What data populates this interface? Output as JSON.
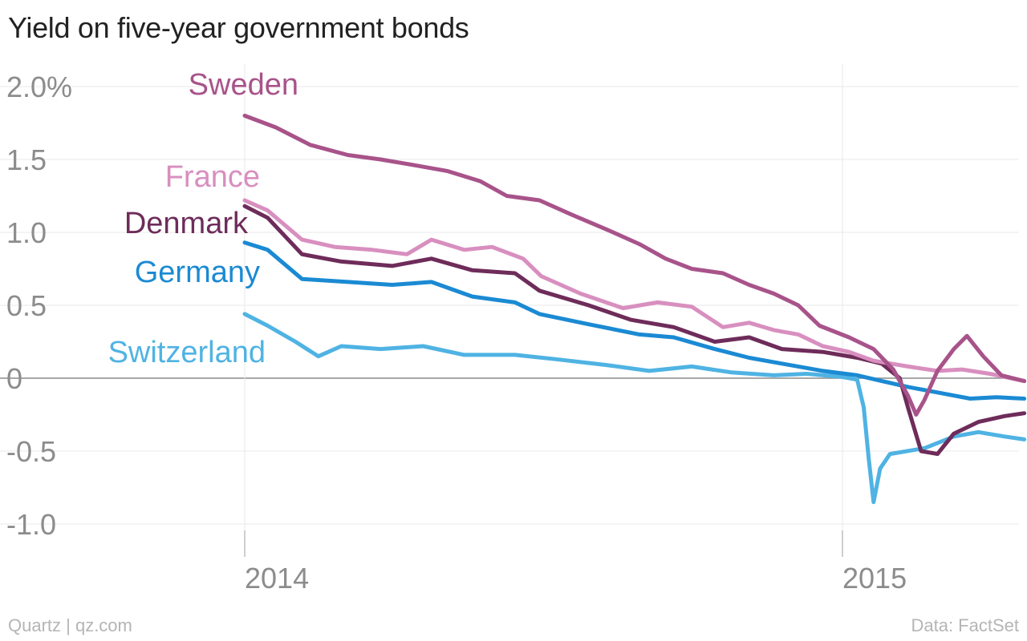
{
  "title": "Yield on five-year government bonds",
  "footer": {
    "source": "Quartz | qz.com",
    "data": "Data: FactSet"
  },
  "colors": {
    "Sweden": "#a8538a",
    "France": "#d88fbf",
    "Denmark": "#6e2c5a",
    "Germany": "#1b8ad3",
    "Switzerland": "#4fb3e3"
  },
  "chart_data": {
    "type": "line",
    "title": "Yield on five-year government bonds",
    "xlabel": "",
    "ylabel": "",
    "xlim": [
      "2013-10-01",
      "2015-04-30"
    ],
    "ylim": [
      -1.2,
      2.15
    ],
    "yticks": [
      2.0,
      1.5,
      1.0,
      0.5,
      0,
      -0.5,
      -1.0
    ],
    "ytick_labels": [
      "2.0%",
      "1.5",
      "1.0",
      "0.5",
      "0",
      "-0.5",
      "-1.0"
    ],
    "xticks": [
      "2014-01-01",
      "2015-01-01"
    ],
    "xtick_labels": [
      "2014",
      "2015"
    ],
    "grid": true,
    "legend": "direct labels at line starts",
    "series": [
      {
        "name": "Sweden",
        "points": [
          [
            "2014-01-01",
            1.8
          ],
          [
            "2014-01-20",
            1.72
          ],
          [
            "2014-02-10",
            1.6
          ],
          [
            "2014-03-05",
            1.53
          ],
          [
            "2014-03-25",
            1.5
          ],
          [
            "2014-04-15",
            1.46
          ],
          [
            "2014-05-05",
            1.42
          ],
          [
            "2014-05-25",
            1.35
          ],
          [
            "2014-06-10",
            1.25
          ],
          [
            "2014-06-30",
            1.22
          ],
          [
            "2014-07-20",
            1.12
          ],
          [
            "2014-08-10",
            1.02
          ],
          [
            "2014-08-30",
            0.92
          ],
          [
            "2014-09-15",
            0.82
          ],
          [
            "2014-10-01",
            0.75
          ],
          [
            "2014-10-20",
            0.72
          ],
          [
            "2014-11-05",
            0.64
          ],
          [
            "2014-11-20",
            0.58
          ],
          [
            "2014-12-05",
            0.5
          ],
          [
            "2014-12-18",
            0.36
          ],
          [
            "2015-01-05",
            0.28
          ],
          [
            "2015-01-20",
            0.2
          ],
          [
            "2015-02-01",
            0.06
          ],
          [
            "2015-02-10",
            -0.12
          ],
          [
            "2015-02-15",
            -0.25
          ],
          [
            "2015-02-20",
            -0.15
          ],
          [
            "2015-02-28",
            0.05
          ],
          [
            "2015-03-10",
            0.2
          ],
          [
            "2015-03-18",
            0.29
          ],
          [
            "2015-03-28",
            0.15
          ],
          [
            "2015-04-08",
            0.02
          ],
          [
            "2015-04-22",
            -0.02
          ]
        ]
      },
      {
        "name": "France",
        "points": [
          [
            "2014-01-01",
            1.22
          ],
          [
            "2014-01-15",
            1.15
          ],
          [
            "2014-02-05",
            0.95
          ],
          [
            "2014-02-25",
            0.9
          ],
          [
            "2014-03-20",
            0.88
          ],
          [
            "2014-04-10",
            0.85
          ],
          [
            "2014-04-25",
            0.95
          ],
          [
            "2014-05-15",
            0.88
          ],
          [
            "2014-06-01",
            0.9
          ],
          [
            "2014-06-20",
            0.82
          ],
          [
            "2014-07-01",
            0.7
          ],
          [
            "2014-07-25",
            0.58
          ],
          [
            "2014-08-20",
            0.48
          ],
          [
            "2014-09-10",
            0.52
          ],
          [
            "2014-10-01",
            0.49
          ],
          [
            "2014-10-20",
            0.35
          ],
          [
            "2014-11-05",
            0.38
          ],
          [
            "2014-11-20",
            0.33
          ],
          [
            "2014-12-05",
            0.3
          ],
          [
            "2014-12-20",
            0.22
          ],
          [
            "2015-01-05",
            0.18
          ],
          [
            "2015-01-20",
            0.12
          ],
          [
            "2015-02-10",
            0.08
          ],
          [
            "2015-02-28",
            0.05
          ],
          [
            "2015-03-15",
            0.06
          ],
          [
            "2015-04-01",
            0.03
          ],
          [
            "2015-04-22",
            -0.02
          ]
        ]
      },
      {
        "name": "Denmark",
        "points": [
          [
            "2014-01-01",
            1.18
          ],
          [
            "2014-01-15",
            1.1
          ],
          [
            "2014-02-05",
            0.85
          ],
          [
            "2014-03-01",
            0.8
          ],
          [
            "2014-04-01",
            0.77
          ],
          [
            "2014-04-25",
            0.82
          ],
          [
            "2014-05-20",
            0.74
          ],
          [
            "2014-06-15",
            0.72
          ],
          [
            "2014-06-30",
            0.6
          ],
          [
            "2014-07-30",
            0.5
          ],
          [
            "2014-08-25",
            0.4
          ],
          [
            "2014-09-20",
            0.35
          ],
          [
            "2014-10-15",
            0.25
          ],
          [
            "2014-11-05",
            0.28
          ],
          [
            "2014-11-25",
            0.2
          ],
          [
            "2014-12-20",
            0.18
          ],
          [
            "2015-01-10",
            0.14
          ],
          [
            "2015-01-25",
            0.1
          ],
          [
            "2015-02-05",
            0.0
          ],
          [
            "2015-02-10",
            -0.2
          ],
          [
            "2015-02-18",
            -0.5
          ],
          [
            "2015-02-28",
            -0.52
          ],
          [
            "2015-03-10",
            -0.38
          ],
          [
            "2015-03-25",
            -0.3
          ],
          [
            "2015-04-10",
            -0.26
          ],
          [
            "2015-04-22",
            -0.24
          ]
        ]
      },
      {
        "name": "Germany",
        "points": [
          [
            "2014-01-01",
            0.93
          ],
          [
            "2014-01-15",
            0.88
          ],
          [
            "2014-02-05",
            0.68
          ],
          [
            "2014-03-05",
            0.66
          ],
          [
            "2014-04-01",
            0.64
          ],
          [
            "2014-04-25",
            0.66
          ],
          [
            "2014-05-20",
            0.56
          ],
          [
            "2014-06-15",
            0.52
          ],
          [
            "2014-06-30",
            0.44
          ],
          [
            "2014-07-30",
            0.37
          ],
          [
            "2014-08-30",
            0.3
          ],
          [
            "2014-09-20",
            0.28
          ],
          [
            "2014-10-15",
            0.2
          ],
          [
            "2014-11-05",
            0.14
          ],
          [
            "2014-11-25",
            0.1
          ],
          [
            "2014-12-20",
            0.05
          ],
          [
            "2015-01-10",
            0.02
          ],
          [
            "2015-01-25",
            -0.02
          ],
          [
            "2015-02-10",
            -0.06
          ],
          [
            "2015-03-01",
            -0.1
          ],
          [
            "2015-03-20",
            -0.14
          ],
          [
            "2015-04-05",
            -0.13
          ],
          [
            "2015-04-22",
            -0.14
          ]
        ]
      },
      {
        "name": "Switzerland",
        "points": [
          [
            "2014-01-01",
            0.44
          ],
          [
            "2014-01-15",
            0.36
          ],
          [
            "2014-02-01",
            0.25
          ],
          [
            "2014-02-15",
            0.15
          ],
          [
            "2014-03-01",
            0.22
          ],
          [
            "2014-03-25",
            0.2
          ],
          [
            "2014-04-20",
            0.22
          ],
          [
            "2014-05-15",
            0.16
          ],
          [
            "2014-06-15",
            0.16
          ],
          [
            "2014-07-10",
            0.13
          ],
          [
            "2014-08-10",
            0.09
          ],
          [
            "2014-09-05",
            0.05
          ],
          [
            "2014-10-01",
            0.08
          ],
          [
            "2014-10-25",
            0.04
          ],
          [
            "2014-11-20",
            0.02
          ],
          [
            "2014-12-10",
            0.03
          ],
          [
            "2014-12-31",
            0.01
          ],
          [
            "2015-01-10",
            -0.01
          ],
          [
            "2015-01-14",
            -0.2
          ],
          [
            "2015-01-17",
            -0.55
          ],
          [
            "2015-01-20",
            -0.85
          ],
          [
            "2015-01-24",
            -0.62
          ],
          [
            "2015-01-30",
            -0.52
          ],
          [
            "2015-02-20",
            -0.48
          ],
          [
            "2015-03-10",
            -0.4
          ],
          [
            "2015-03-25",
            -0.37
          ],
          [
            "2015-04-10",
            -0.4
          ],
          [
            "2015-04-22",
            -0.42
          ]
        ]
      }
    ]
  }
}
